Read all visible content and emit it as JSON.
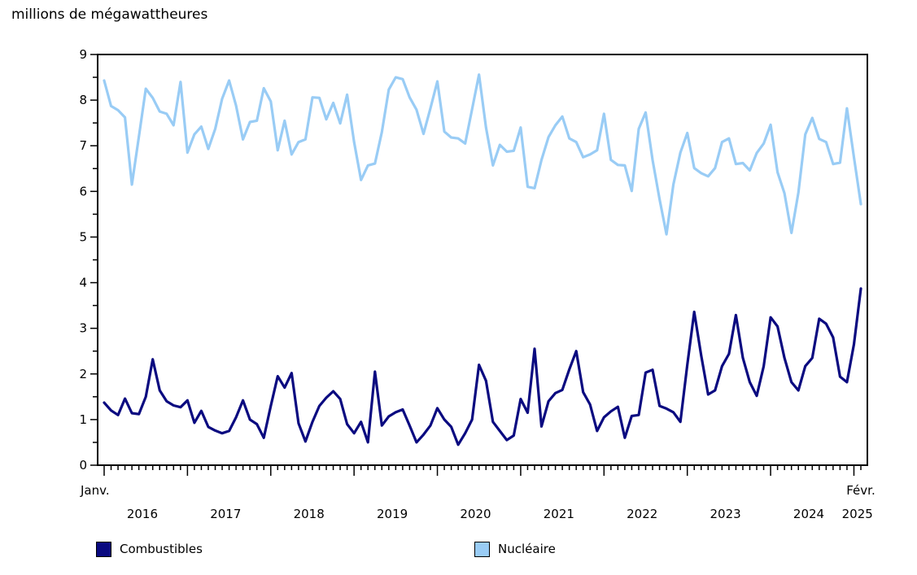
{
  "title": "millions de mégawattheures",
  "chart_data": {
    "type": "line",
    "title": "millions de mégawattheures",
    "x_first_tick_label": "Janv.",
    "x_last_tick_label": "Févr.",
    "year_labels": [
      "2016",
      "2017",
      "2018",
      "2019",
      "2020",
      "2021",
      "2022",
      "2023",
      "2024",
      "2025"
    ],
    "start_month": "2016-01",
    "end_month": "2025-02",
    "ylim": [
      0,
      9
    ],
    "y_ticks": [
      0,
      1,
      2,
      3,
      4,
      5,
      6,
      7,
      8,
      9
    ],
    "grid": false,
    "legend_position": "bottom",
    "axis_color": "#000000",
    "series": [
      {
        "name": "Combustibles",
        "color": "#0a0a80",
        "values": [
          1.37,
          1.2,
          1.1,
          1.46,
          1.14,
          1.12,
          1.5,
          2.32,
          1.64,
          1.4,
          1.31,
          1.27,
          1.42,
          0.93,
          1.19,
          0.84,
          0.76,
          0.7,
          0.75,
          1.05,
          1.42,
          1.0,
          0.9,
          0.6,
          1.3,
          1.95,
          1.7,
          2.02,
          0.92,
          0.52,
          0.95,
          1.3,
          1.48,
          1.62,
          1.45,
          0.9,
          0.7,
          0.95,
          0.5,
          2.05,
          0.87,
          1.07,
          1.16,
          1.22,
          0.87,
          0.5,
          0.67,
          0.87,
          1.25,
          1.0,
          0.84,
          0.45,
          0.7,
          1.0,
          2.2,
          1.85,
          0.95,
          0.75,
          0.55,
          0.65,
          1.45,
          1.15,
          2.55,
          0.85,
          1.4,
          1.58,
          1.65,
          2.1,
          2.5,
          1.6,
          1.33,
          0.75,
          1.05,
          1.18,
          1.28,
          0.6,
          1.08,
          1.1,
          2.03,
          2.09,
          1.3,
          1.24,
          1.16,
          0.95,
          2.2,
          3.36,
          2.4,
          1.55,
          1.64,
          2.17,
          2.44,
          3.29,
          2.35,
          1.82,
          1.52,
          2.17,
          3.24,
          3.04,
          2.35,
          1.82,
          1.64,
          2.17,
          2.35,
          3.21,
          3.1,
          2.8,
          1.94,
          1.82,
          2.65,
          3.87
        ]
      },
      {
        "name": "Nucléaire",
        "color": "#99ccf5",
        "values": [
          8.43,
          7.87,
          7.78,
          7.62,
          6.15,
          7.2,
          8.25,
          8.05,
          7.75,
          7.7,
          7.45,
          8.4,
          6.85,
          7.25,
          7.42,
          6.93,
          7.37,
          8.03,
          8.43,
          7.88,
          7.14,
          7.52,
          7.55,
          8.26,
          7.97,
          6.9,
          7.55,
          6.81,
          7.08,
          7.14,
          8.06,
          8.05,
          7.58,
          7.94,
          7.49,
          8.12,
          7.08,
          6.25,
          6.57,
          6.61,
          7.3,
          8.23,
          8.5,
          8.46,
          8.06,
          7.79,
          7.26,
          7.82,
          8.41,
          7.31,
          7.18,
          7.16,
          7.05,
          7.8,
          8.56,
          7.4,
          6.57,
          7.02,
          6.87,
          6.89,
          7.4,
          6.1,
          6.07,
          6.69,
          7.19,
          7.45,
          7.64,
          7.16,
          7.08,
          6.75,
          6.81,
          6.9,
          7.7,
          6.69,
          6.58,
          6.57,
          6.01,
          7.37,
          7.73,
          6.69,
          5.83,
          5.06,
          6.15,
          6.85,
          7.28,
          6.51,
          6.4,
          6.33,
          6.51,
          7.08,
          7.16,
          6.6,
          6.62,
          6.46,
          6.84,
          7.05,
          7.46,
          6.42,
          5.96,
          5.09,
          5.97,
          7.25,
          7.61,
          7.15,
          7.08,
          6.6,
          6.63,
          7.82,
          6.75,
          5.72
        ]
      }
    ]
  },
  "legend": {
    "items": [
      {
        "label": "Combustibles",
        "color": "#0a0a80"
      },
      {
        "label": "Nucléaire",
        "color": "#99ccf5"
      }
    ]
  }
}
